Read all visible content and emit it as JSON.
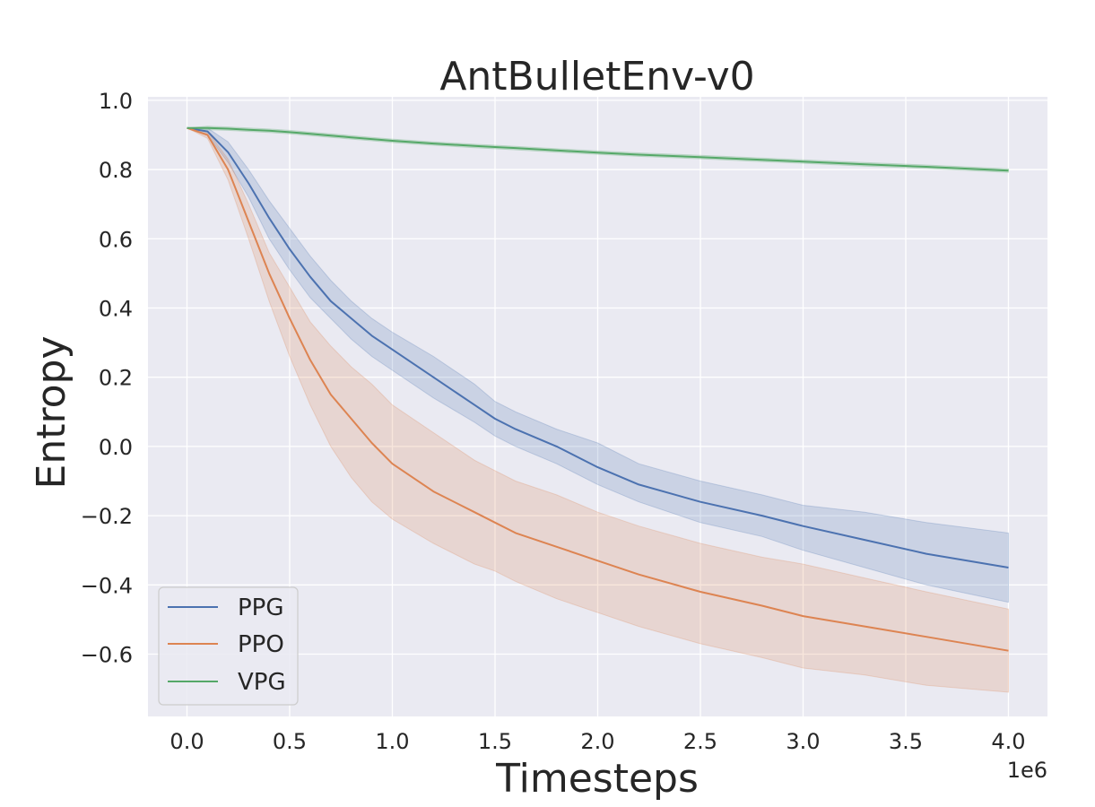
{
  "chart_data": {
    "type": "line",
    "title": "AntBulletEnv-v0",
    "xlabel": "Timesteps",
    "ylabel": "Entropy",
    "x_offset_label": "1e6",
    "xlim": [
      -0.19,
      4.19
    ],
    "ylim": [
      -0.78,
      1.01
    ],
    "xticks": [
      0.0,
      0.5,
      1.0,
      1.5,
      2.0,
      2.5,
      3.0,
      3.5,
      4.0
    ],
    "xtick_labels": [
      "0.0",
      "0.5",
      "1.0",
      "1.5",
      "2.0",
      "2.5",
      "3.0",
      "3.5",
      "4.0"
    ],
    "yticks": [
      1.0,
      0.8,
      0.6,
      0.4,
      0.2,
      0.0,
      -0.2,
      -0.4,
      -0.6
    ],
    "ytick_labels": [
      "1.0",
      "0.8",
      "0.6",
      "0.4",
      "0.2",
      "0.0",
      "−0.2",
      "−0.4",
      "−0.6"
    ],
    "grid": true,
    "legend_position": "lower-left",
    "background_color": "#eaeaf2",
    "x": [
      0.0,
      0.1,
      0.2,
      0.3,
      0.4,
      0.5,
      0.6,
      0.7,
      0.8,
      0.9,
      1.0,
      1.2,
      1.4,
      1.5,
      1.6,
      1.8,
      2.0,
      2.2,
      2.5,
      2.8,
      3.0,
      3.3,
      3.6,
      4.0
    ],
    "series": [
      {
        "name": "PPG",
        "color": "#4c72b0",
        "values": [
          0.92,
          0.91,
          0.85,
          0.76,
          0.66,
          0.57,
          0.49,
          0.42,
          0.37,
          0.32,
          0.28,
          0.2,
          0.12,
          0.08,
          0.05,
          0.0,
          -0.06,
          -0.11,
          -0.16,
          -0.2,
          -0.23,
          -0.27,
          -0.31,
          -0.35
        ],
        "lower": [
          0.92,
          0.9,
          0.82,
          0.72,
          0.6,
          0.51,
          0.43,
          0.37,
          0.31,
          0.26,
          0.22,
          0.14,
          0.07,
          0.03,
          0.0,
          -0.05,
          -0.11,
          -0.16,
          -0.22,
          -0.26,
          -0.3,
          -0.35,
          -0.4,
          -0.45
        ],
        "upper": [
          0.92,
          0.92,
          0.88,
          0.8,
          0.71,
          0.63,
          0.55,
          0.48,
          0.42,
          0.37,
          0.33,
          0.26,
          0.18,
          0.13,
          0.1,
          0.05,
          0.01,
          -0.05,
          -0.1,
          -0.14,
          -0.17,
          -0.19,
          -0.22,
          -0.25
        ]
      },
      {
        "name": "PPO",
        "color": "#dd8452",
        "values": [
          0.92,
          0.9,
          0.8,
          0.65,
          0.5,
          0.37,
          0.25,
          0.15,
          0.08,
          0.01,
          -0.05,
          -0.13,
          -0.19,
          -0.22,
          -0.25,
          -0.29,
          -0.33,
          -0.37,
          -0.42,
          -0.46,
          -0.49,
          -0.52,
          -0.55,
          -0.59
        ],
        "lower": [
          0.92,
          0.89,
          0.77,
          0.6,
          0.42,
          0.26,
          0.12,
          0.0,
          -0.09,
          -0.16,
          -0.21,
          -0.28,
          -0.34,
          -0.36,
          -0.39,
          -0.44,
          -0.48,
          -0.52,
          -0.57,
          -0.61,
          -0.64,
          -0.66,
          -0.69,
          -0.71
        ],
        "upper": [
          0.92,
          0.91,
          0.83,
          0.7,
          0.56,
          0.46,
          0.36,
          0.29,
          0.23,
          0.18,
          0.12,
          0.04,
          -0.04,
          -0.07,
          -0.1,
          -0.14,
          -0.19,
          -0.23,
          -0.28,
          -0.32,
          -0.34,
          -0.38,
          -0.42,
          -0.47
        ]
      },
      {
        "name": "VPG",
        "color": "#55a868",
        "values": [
          0.92,
          0.92,
          0.918,
          0.915,
          0.912,
          0.908,
          0.903,
          0.898,
          0.893,
          0.888,
          0.883,
          0.875,
          0.868,
          0.865,
          0.862,
          0.855,
          0.849,
          0.843,
          0.836,
          0.828,
          0.823,
          0.815,
          0.808,
          0.797
        ],
        "lower": [
          0.92,
          0.915,
          0.913,
          0.91,
          0.907,
          0.903,
          0.898,
          0.893,
          0.888,
          0.883,
          0.878,
          0.87,
          0.863,
          0.86,
          0.857,
          0.85,
          0.844,
          0.838,
          0.831,
          0.823,
          0.818,
          0.81,
          0.803,
          0.792
        ],
        "upper": [
          0.92,
          0.925,
          0.923,
          0.92,
          0.917,
          0.913,
          0.908,
          0.903,
          0.898,
          0.893,
          0.888,
          0.88,
          0.873,
          0.87,
          0.867,
          0.86,
          0.854,
          0.848,
          0.841,
          0.833,
          0.828,
          0.82,
          0.813,
          0.802
        ]
      }
    ]
  }
}
